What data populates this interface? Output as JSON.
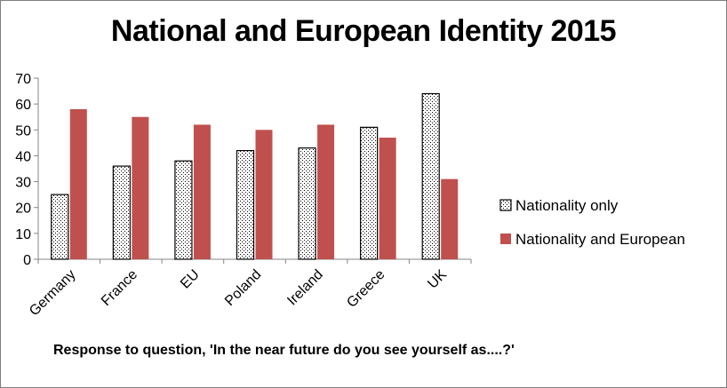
{
  "chart_data": {
    "type": "bar",
    "title": "National and European Identity 2015",
    "note": "Response to question, 'In the near future do you see yourself as....?'",
    "categories": [
      "Germany",
      "France",
      "EU",
      "Poland",
      "Ireland",
      "Greece",
      "UK"
    ],
    "series": [
      {
        "name": "Nationality only",
        "values": [
          25,
          36,
          38,
          42,
          43,
          51,
          64
        ],
        "fill": "dotted",
        "color": "#ffffff"
      },
      {
        "name": "Nationality and European",
        "values": [
          58,
          55,
          52,
          50,
          52,
          47,
          31
        ],
        "fill": "solid",
        "color": "#c0504d"
      }
    ],
    "ylim": [
      0,
      70
    ],
    "yticks": [
      0,
      10,
      20,
      30,
      40,
      50,
      60,
      70
    ],
    "grid": false,
    "legend": "right"
  }
}
